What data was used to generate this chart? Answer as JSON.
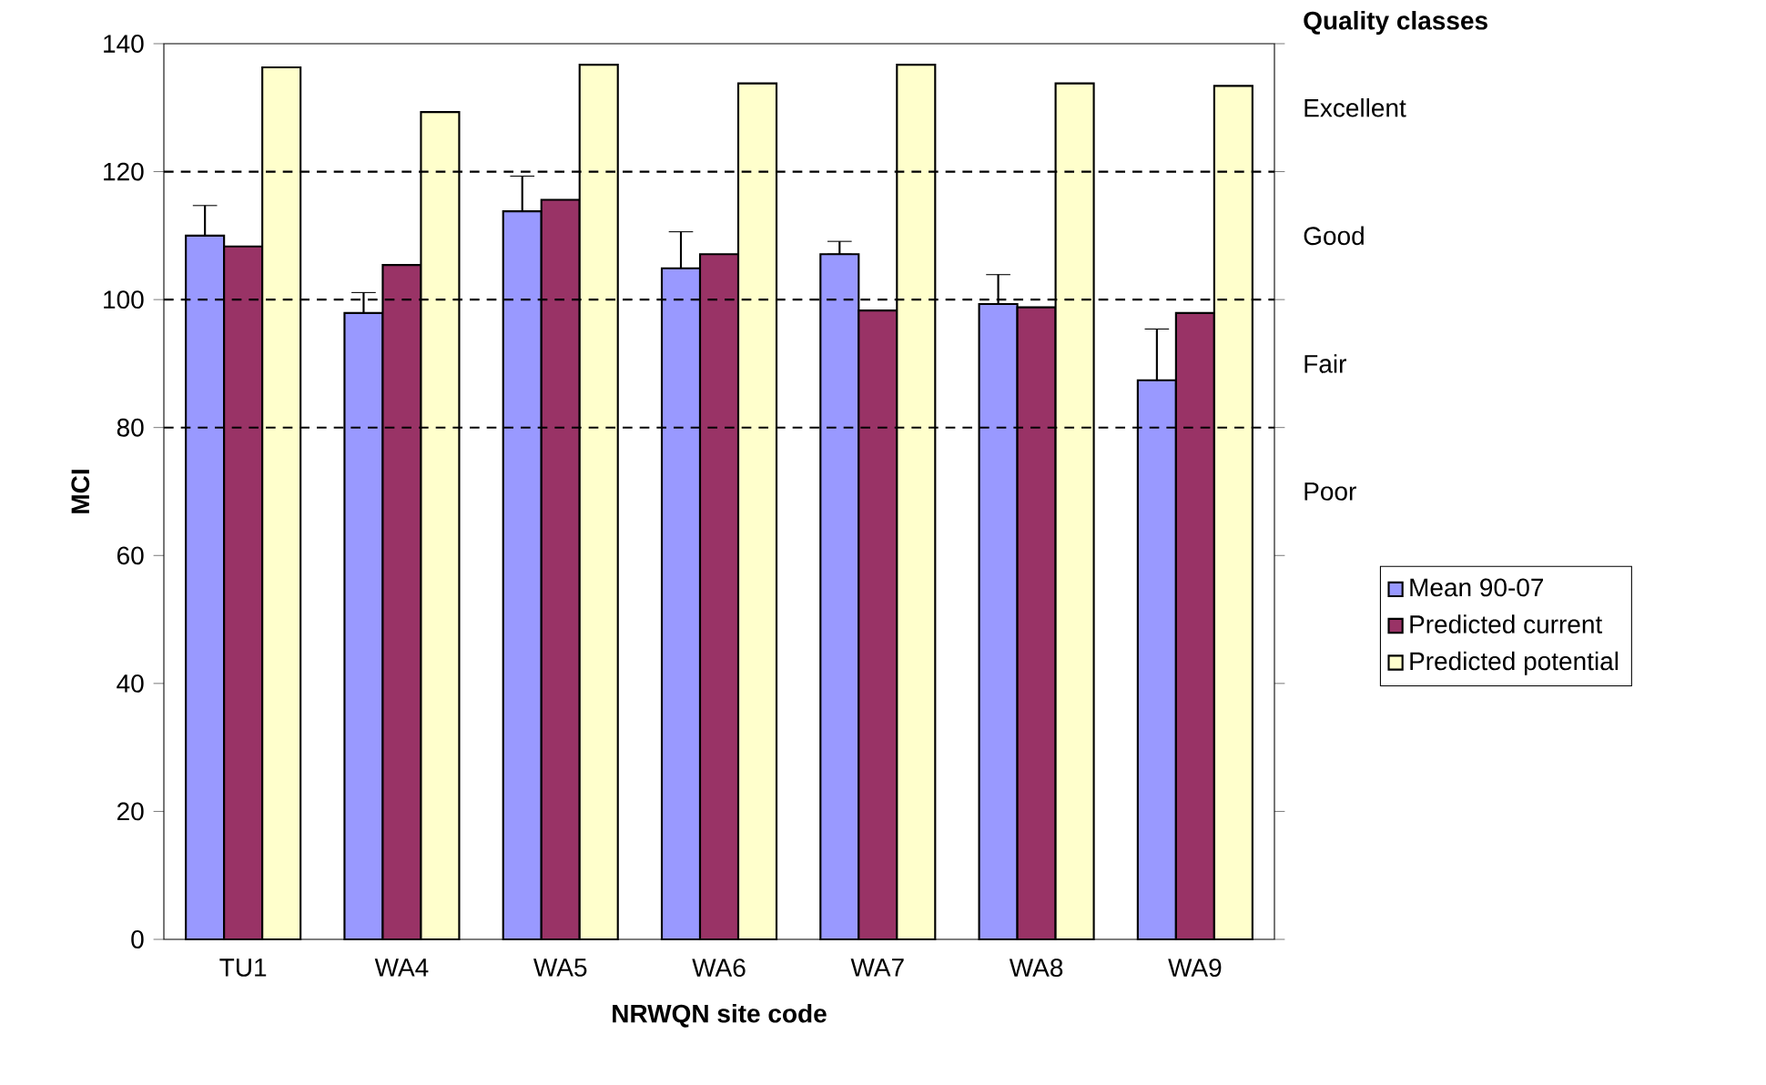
{
  "chart_data": {
    "type": "bar",
    "xlabel": "NRWQN site code",
    "ylabel": "MCI",
    "categories": [
      "TU1",
      "WA4",
      "WA5",
      "WA6",
      "WA7",
      "WA8",
      "WA9"
    ],
    "series": [
      {
        "name": "Mean 90-07",
        "color": "#9999ff",
        "values": [
          110,
          97.9,
          113.8,
          104.9,
          107.1,
          99.3,
          87.4
        ],
        "errors": [
          [
            110,
            114.7
          ],
          [
            97.9,
            101.1
          ],
          [
            113.8,
            119.3
          ],
          [
            104.9,
            110.6
          ],
          [
            107.1,
            109.1
          ],
          [
            99.3,
            103.9
          ],
          [
            87.4,
            95.4
          ]
        ]
      },
      {
        "name": "Predicted current",
        "color": "#993366",
        "values": [
          108.3,
          105.4,
          115.6,
          107.1,
          98.3,
          98.8,
          97.9
        ]
      },
      {
        "name": "Predicted potential",
        "color": "#ffffcc",
        "values": [
          136.3,
          129.3,
          136.7,
          133.8,
          136.7,
          133.8,
          133.4
        ]
      }
    ],
    "ylim": [
      0,
      140
    ],
    "yticks": [
      0,
      20,
      40,
      60,
      80,
      100,
      120,
      140
    ],
    "ref_lines": [
      {
        "axis": "y",
        "value": 80,
        "line_style": "dashed"
      },
      {
        "axis": "y",
        "value": 100,
        "line_style": "dashed"
      },
      {
        "axis": "y",
        "value": 120,
        "line_style": "dashed"
      }
    ],
    "annotations": [
      "Quality classes",
      "Excellent",
      "Good",
      "Fair",
      "Poor"
    ],
    "legend": "right",
    "grid": false
  }
}
